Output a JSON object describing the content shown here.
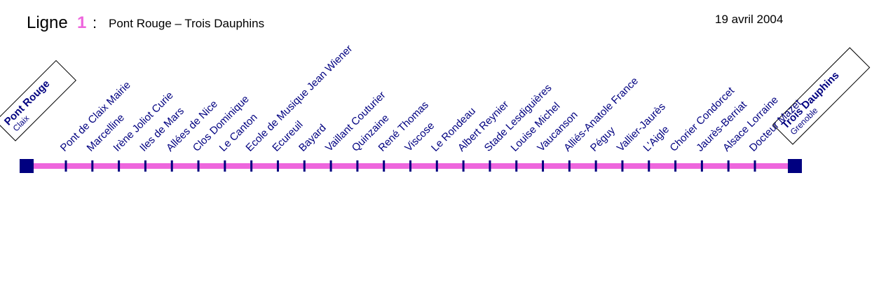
{
  "header": {
    "ligne": "Ligne",
    "number": "1",
    "colon": ":",
    "route": "Pont Rouge – Trois Dauphins",
    "date": "19 avril 2004"
  },
  "terminals": [
    {
      "name": "Pont Rouge",
      "city": "Claix"
    },
    {
      "name": "Trois Dauphins",
      "city": "Grenoble"
    }
  ],
  "stations": [
    "Pont de Claix Mairie",
    "Marcelline",
    "Irène Joliot Curie",
    "Iles de Mars",
    "Allées de Nice",
    "Clos Dominique",
    "Le Canton",
    "Ecole de Musique Jean Wiener",
    "Ecureuil",
    "Bayard",
    "Vaillant Couturier",
    "Quinzaine",
    "René Thomas",
    "Viscose",
    "Le Rondeau",
    "Albert Reynier",
    "Stade Lesdiguières",
    "Louise Michel",
    "Vaucanson",
    "Alliés-Anatole France",
    "Péguy",
    "Vallier-Jaurès",
    "L'Aigle",
    "Chorier Condorcet",
    "Jaurès-Berriat",
    "Alsace Lorraine",
    "Docteur Mazet"
  ]
}
